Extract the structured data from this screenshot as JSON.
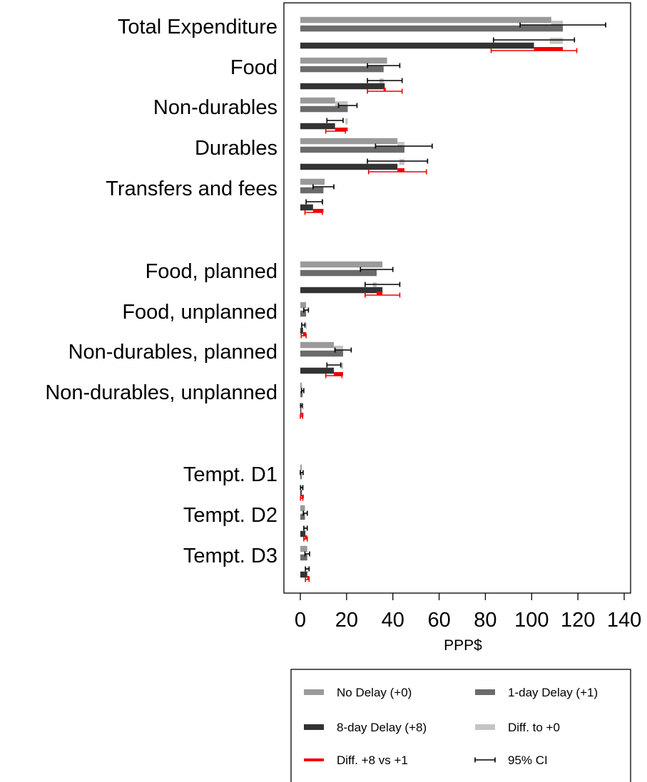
{
  "chart_data": {
    "type": "bar",
    "orientation": "horizontal",
    "xlabel": "PPP$",
    "xlim": [
      -7,
      143
    ],
    "xticks": [
      0,
      20,
      40,
      60,
      80,
      100,
      120,
      140
    ],
    "grid": false,
    "legend_position": "bottom-right",
    "colors": {
      "no_delay": "#9a9a9a",
      "one_day": "#6b6b6b",
      "eight_day": "#333333",
      "diff_to_0": "#c4c4c4",
      "diff_8_vs_1": "#ee0000",
      "ci": "#000000"
    },
    "legend": [
      {
        "key": "no_delay",
        "label": "No Delay (+0)",
        "kind": "bar"
      },
      {
        "key": "one_day",
        "label": "1-day Delay (+1)",
        "kind": "bar"
      },
      {
        "key": "eight_day",
        "label": "8-day Delay (+8)",
        "kind": "bar"
      },
      {
        "key": "diff_to_0",
        "label": "Diff. to +0",
        "kind": "bar"
      },
      {
        "key": "diff_8_vs_1",
        "label": "Diff. +8 vs +1",
        "kind": "line"
      },
      {
        "key": "ci",
        "label": "95% CI",
        "kind": "ci"
      }
    ],
    "categories": [
      {
        "label": "Total Expenditure",
        "no_delay": 108.5,
        "one_day": 113.5,
        "one_day_ci": [
          95.0,
          132.0
        ],
        "eight_day": 101.0,
        "eight_day_ci": [
          83.5,
          118.5
        ],
        "diff_8_vs_1_ci": [
          82.5,
          119.5
        ]
      },
      {
        "label": "Food",
        "no_delay": 37.5,
        "one_day": 36.0,
        "one_day_ci": [
          29.0,
          43.0
        ],
        "eight_day": 36.5,
        "eight_day_ci": [
          29.0,
          44.0
        ],
        "diff_8_vs_1_ci": [
          29.0,
          44.0
        ]
      },
      {
        "label": "Non-durables",
        "no_delay": 15.0,
        "one_day": 20.5,
        "one_day_ci": [
          16.5,
          24.5
        ],
        "eight_day": 15.0,
        "eight_day_ci": [
          11.5,
          18.5
        ],
        "diff_8_vs_1_ci": [
          11.0,
          19.5
        ]
      },
      {
        "label": "Durables",
        "no_delay": 42.0,
        "one_day": 45.0,
        "one_day_ci": [
          32.5,
          57.0
        ],
        "eight_day": 42.0,
        "eight_day_ci": [
          29.0,
          55.0
        ],
        "diff_8_vs_1_ci": [
          29.5,
          54.5
        ]
      },
      {
        "label": "Transfers and fees",
        "no_delay": 10.5,
        "one_day": 10.0,
        "one_day_ci": [
          5.5,
          14.5
        ],
        "eight_day": 5.5,
        "eight_day_ci": [
          2.5,
          9.5
        ],
        "diff_8_vs_1_ci": [
          2.0,
          9.5
        ]
      },
      {
        "label": "Food, planned",
        "no_delay": 35.5,
        "one_day": 33.0,
        "one_day_ci": [
          26.0,
          40.0
        ],
        "eight_day": 35.5,
        "eight_day_ci": [
          28.0,
          43.0
        ],
        "diff_8_vs_1_ci": [
          28.0,
          43.0
        ]
      },
      {
        "label": "Food, unplanned",
        "no_delay": 2.5,
        "one_day": 2.5,
        "one_day_ci": [
          1.5,
          3.5
        ],
        "eight_day": 1.2,
        "eight_day_ci": [
          0.6,
          2.0
        ],
        "diff_8_vs_1_ci": [
          0.4,
          2.5
        ]
      },
      {
        "label": "Non-durables, planned",
        "no_delay": 14.5,
        "one_day": 18.5,
        "one_day_ci": [
          15.0,
          22.0
        ],
        "eight_day": 14.5,
        "eight_day_ci": [
          11.5,
          17.5
        ],
        "diff_8_vs_1_ci": [
          11.0,
          18.0
        ]
      },
      {
        "label": "Non-durables, unplanned",
        "no_delay": 0.6,
        "one_day": 1.0,
        "one_day_ci": [
          0.5,
          1.5
        ],
        "eight_day": 0.4,
        "eight_day_ci": [
          0.1,
          0.8
        ],
        "diff_8_vs_1_ci": [
          0.0,
          1.0
        ]
      },
      {
        "label": "Tempt. D1",
        "no_delay": 0.6,
        "one_day": 0.6,
        "one_day_ci": [
          0.0,
          1.2
        ],
        "eight_day": 0.6,
        "eight_day_ci": [
          0.1,
          1.1
        ],
        "diff_8_vs_1_ci": [
          0.1,
          1.1
        ]
      },
      {
        "label": "Tempt. D2",
        "no_delay": 2.0,
        "one_day": 2.0,
        "one_day_ci": [
          1.3,
          3.0
        ],
        "eight_day": 2.2,
        "eight_day_ci": [
          1.5,
          3.0
        ],
        "diff_8_vs_1_ci": [
          1.5,
          3.0
        ]
      },
      {
        "label": "Tempt. D3",
        "no_delay": 3.0,
        "one_day": 3.0,
        "one_day_ci": [
          2.0,
          4.0
        ],
        "eight_day": 3.0,
        "eight_day_ci": [
          2.2,
          3.8
        ],
        "diff_8_vs_1_ci": [
          2.2,
          3.8
        ]
      }
    ]
  }
}
